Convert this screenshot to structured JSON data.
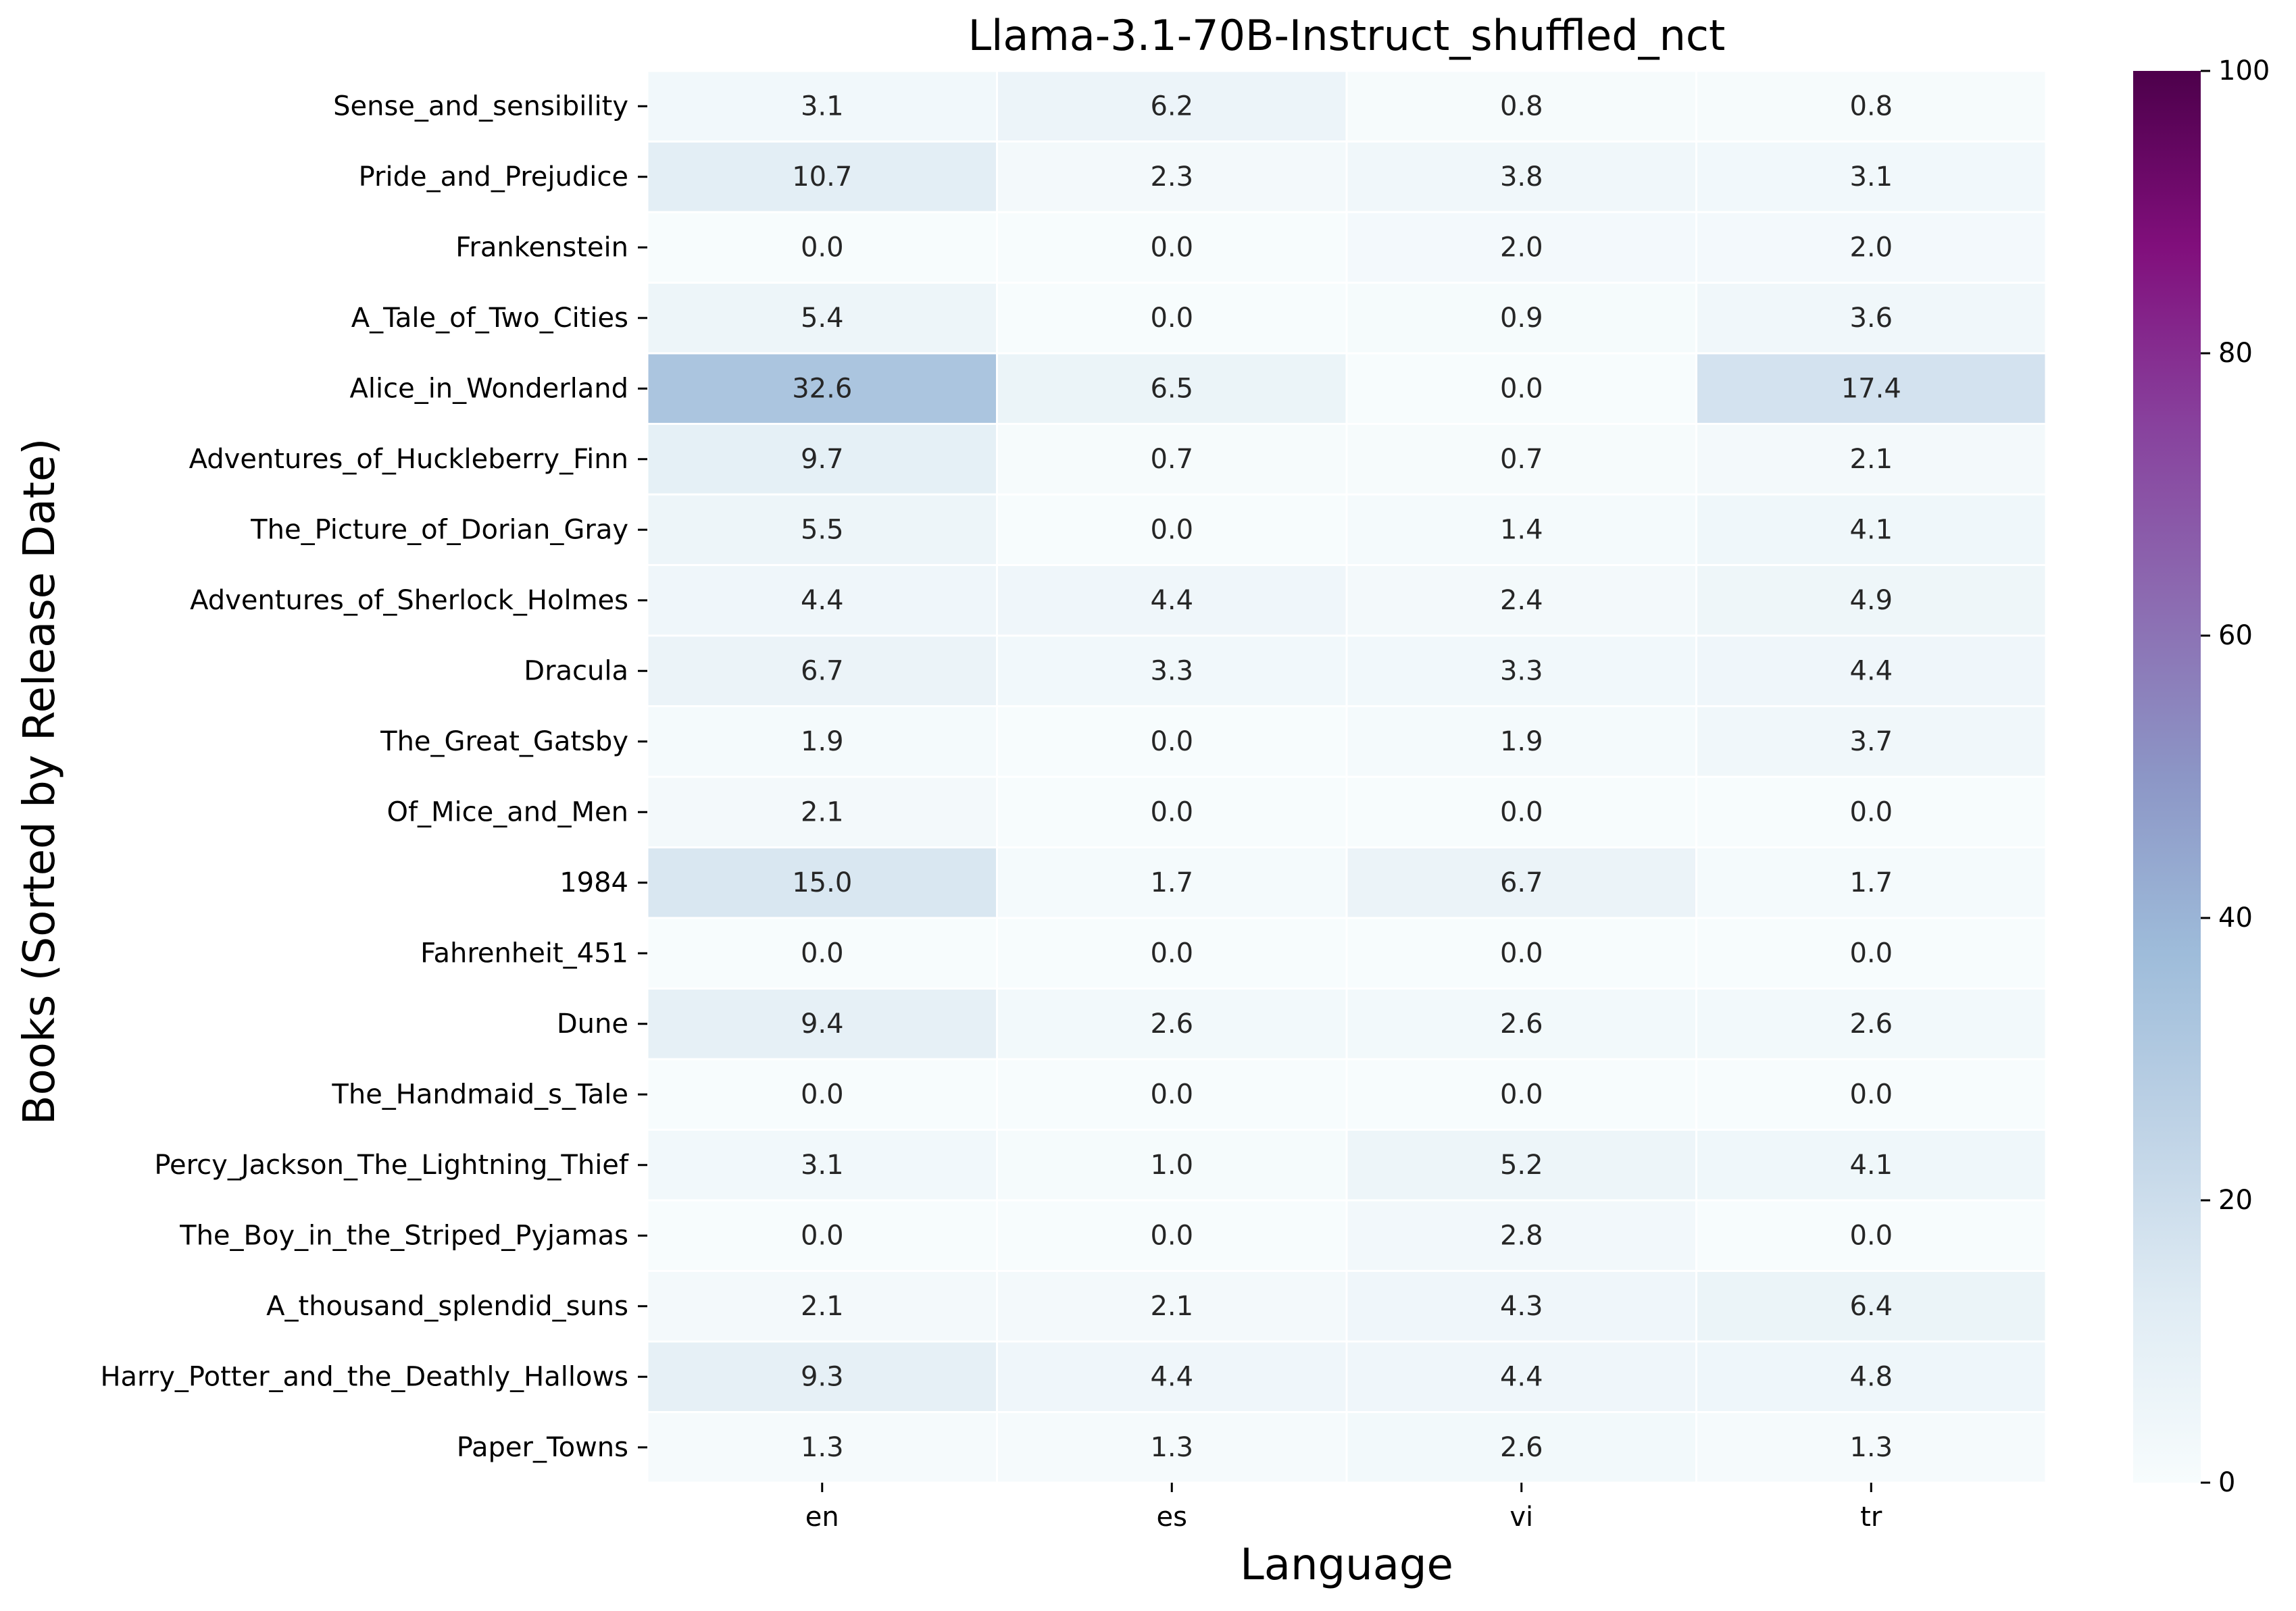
{
  "chart_data": {
    "type": "heatmap",
    "title": "Llama-3.1-70B-Instruct_shuffled_nct",
    "xlabel": "Language",
    "ylabel": "Books (Sorted by Release Date)",
    "x_categories": [
      "en",
      "es",
      "vi",
      "tr"
    ],
    "y_categories": [
      "Sense_and_sensibility",
      "Pride_and_Prejudice",
      "Frankenstein",
      "A_Tale_of_Two_Cities",
      "Alice_in_Wonderland",
      "Adventures_of_Huckleberry_Finn",
      "The_Picture_of_Dorian_Gray",
      "Adventures_of_Sherlock_Holmes",
      "Dracula",
      "The_Great_Gatsby",
      "Of_Mice_and_Men",
      "1984",
      "Fahrenheit_451",
      "Dune",
      "The_Handmaid_s_Tale",
      "Percy_Jackson_The_Lightning_Thief",
      "The_Boy_in_the_Striped_Pyjamas",
      "A_thousand_splendid_suns",
      "Harry_Potter_and_the_Deathly_Hallows",
      "Paper_Towns"
    ],
    "values": [
      [
        3.1,
        6.2,
        0.8,
        0.8
      ],
      [
        10.7,
        2.3,
        3.8,
        3.1
      ],
      [
        0.0,
        0.0,
        2.0,
        2.0
      ],
      [
        5.4,
        0.0,
        0.9,
        3.6
      ],
      [
        32.6,
        6.5,
        0.0,
        17.4
      ],
      [
        9.7,
        0.7,
        0.7,
        2.1
      ],
      [
        5.5,
        0.0,
        1.4,
        4.1
      ],
      [
        4.4,
        4.4,
        2.4,
        4.9
      ],
      [
        6.7,
        3.3,
        3.3,
        4.4
      ],
      [
        1.9,
        0.0,
        1.9,
        3.7
      ],
      [
        2.1,
        0.0,
        0.0,
        0.0
      ],
      [
        15.0,
        1.7,
        6.7,
        1.7
      ],
      [
        0.0,
        0.0,
        0.0,
        0.0
      ],
      [
        9.4,
        2.6,
        2.6,
        2.6
      ],
      [
        0.0,
        0.0,
        0.0,
        0.0
      ],
      [
        3.1,
        1.0,
        5.2,
        4.1
      ],
      [
        0.0,
        0.0,
        2.8,
        0.0
      ],
      [
        2.1,
        2.1,
        4.3,
        6.4
      ],
      [
        9.3,
        4.4,
        4.4,
        4.8
      ],
      [
        1.3,
        1.3,
        2.6,
        1.3
      ]
    ],
    "colorbar": {
      "range": [
        0,
        100
      ],
      "ticks": [
        0,
        20,
        40,
        60,
        80,
        100
      ],
      "colormap": "BuPu",
      "stops": [
        "#f7fcfd",
        "#e0ecf4",
        "#bfd3e6",
        "#9ebcda",
        "#8c96c6",
        "#8c6bb1",
        "#88419d",
        "#810f7c",
        "#4d004b"
      ]
    },
    "annotation_text_colors": {
      "dark": "#262626",
      "light": "#ffffff"
    },
    "grid": false
  }
}
